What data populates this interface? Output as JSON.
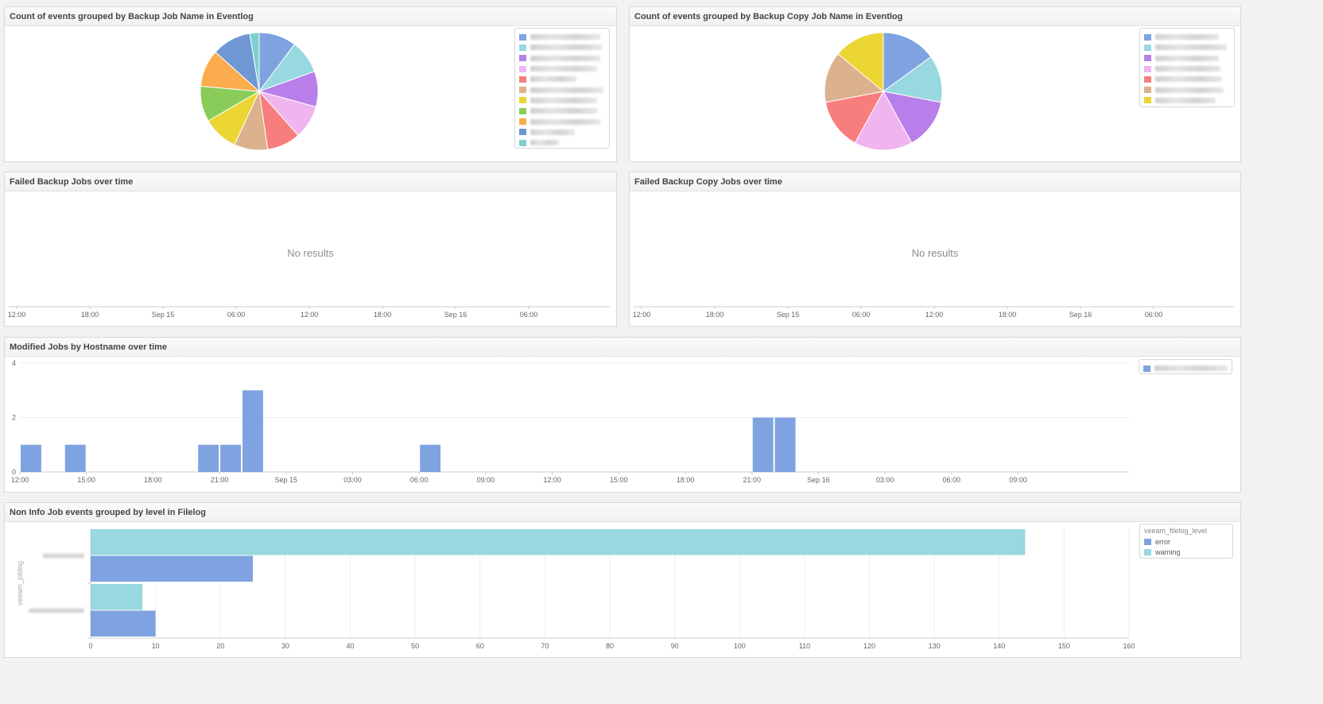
{
  "panels": {
    "p1": {
      "title": "Count of events grouped by Backup Job Name in Eventlog"
    },
    "p2": {
      "title": "Count of events grouped by Backup Copy Job Name in Eventlog"
    },
    "p3": {
      "title": "Failed Backup Jobs over time",
      "empty_text": "No results"
    },
    "p4": {
      "title": "Failed Backup Copy Jobs over time",
      "empty_text": "No results"
    },
    "p5": {
      "title": "Modified Jobs by Hostname over time"
    },
    "p6": {
      "title": "Non Info Job events grouped by level in Filelog"
    }
  },
  "chart_data": [
    {
      "type": "pie",
      "id": "backup-job-pie",
      "title": "Count of events grouped by Backup Job Name in Eventlog",
      "slices": [
        {
          "value": 10,
          "color": "#7ea3e0"
        },
        {
          "value": 9,
          "color": "#98d8e0"
        },
        {
          "value": 9.5,
          "color": "#b87eea"
        },
        {
          "value": 9,
          "color": "#f0b4ee"
        },
        {
          "value": 9,
          "color": "#f87e7e"
        },
        {
          "value": 9,
          "color": "#dcb28e"
        },
        {
          "value": 9.5,
          "color": "#ecd634"
        },
        {
          "value": 9.5,
          "color": "#89cc5a"
        },
        {
          "value": 10,
          "color": "#fbac4c"
        },
        {
          "value": 10.5,
          "color": "#6e97d4"
        },
        {
          "value": 2.5,
          "color": "#7ecfcf"
        }
      ],
      "legend_colors": [
        "#7ea3e0",
        "#98d8e0",
        "#b87eea",
        "#f0b4ee",
        "#f87e7e",
        "#dcb28e",
        "#ecd634",
        "#89cc5a",
        "#fbac4c",
        "#6e97d4",
        "#7ecfcf"
      ]
    },
    {
      "type": "pie",
      "id": "backup-copy-pie",
      "title": "Count of events grouped by Backup Copy Job Name in Eventlog",
      "slices": [
        {
          "value": 15,
          "color": "#7ea3e0"
        },
        {
          "value": 13,
          "color": "#98d8e0"
        },
        {
          "value": 14,
          "color": "#b87eea"
        },
        {
          "value": 16,
          "color": "#f0b4ee"
        },
        {
          "value": 14,
          "color": "#f87e7e"
        },
        {
          "value": 14,
          "color": "#dcb28e"
        },
        {
          "value": 14,
          "color": "#ecd634"
        }
      ],
      "legend_colors": [
        "#7ea3e0",
        "#98d8e0",
        "#b87eea",
        "#f0b4ee",
        "#f87e7e",
        "#dcb28e",
        "#ecd634"
      ]
    },
    {
      "type": "bar",
      "id": "failed-backup-timeline",
      "title": "Failed Backup Jobs over time",
      "x_ticks": [
        "12:00",
        "18:00",
        "Sep 15",
        "06:00",
        "12:00",
        "18:00",
        "Sep 16",
        "06:00"
      ],
      "values": []
    },
    {
      "type": "bar",
      "id": "failed-copy-timeline",
      "title": "Failed Backup Copy Jobs over time",
      "x_ticks": [
        "12:00",
        "18:00",
        "Sep 15",
        "06:00",
        "12:00",
        "18:00",
        "Sep 16",
        "06:00"
      ],
      "values": []
    },
    {
      "type": "bar",
      "id": "modified-jobs-timeline",
      "title": "Modified Jobs by Hostname over time",
      "x_ticks": [
        "12:00",
        "15:00",
        "18:00",
        "21:00",
        "Sep 15",
        "03:00",
        "06:00",
        "09:00",
        "12:00",
        "15:00",
        "18:00",
        "21:00",
        "Sep 16",
        "03:00",
        "06:00",
        "09:00"
      ],
      "y_ticks": [
        0,
        2,
        4
      ],
      "ylim": [
        0,
        4
      ],
      "bucket_hours": 1,
      "x_start_hours": 0,
      "x_end_hours": 50,
      "bars": [
        {
          "start": 0,
          "value": 1
        },
        {
          "start": 2,
          "value": 1
        },
        {
          "start": 8,
          "value": 1
        },
        {
          "start": 9,
          "value": 1
        },
        {
          "start": 10,
          "value": 3
        },
        {
          "start": 18,
          "value": 1
        },
        {
          "start": 33,
          "value": 2
        },
        {
          "start": 34,
          "value": 2
        }
      ],
      "color": "#7ea3e0",
      "legend_color": "#7ea3e0"
    },
    {
      "type": "bar",
      "orientation": "horizontal",
      "id": "filelog-levels",
      "title": "Non Info Job events grouped by level in Filelog",
      "ylabel": "veeam_joblog",
      "x_ticks": [
        0,
        10,
        20,
        30,
        40,
        50,
        60,
        70,
        80,
        90,
        100,
        110,
        120,
        130,
        140,
        150,
        160
      ],
      "xlim": [
        0,
        160
      ],
      "legend_title": "veeam_filelog_level",
      "series": [
        {
          "name": "error",
          "color": "#7ea3e0",
          "values": [
            25,
            10
          ]
        },
        {
          "name": "warning",
          "color": "#98d8e0",
          "values": [
            144,
            8
          ]
        }
      ],
      "groups": 2
    }
  ]
}
